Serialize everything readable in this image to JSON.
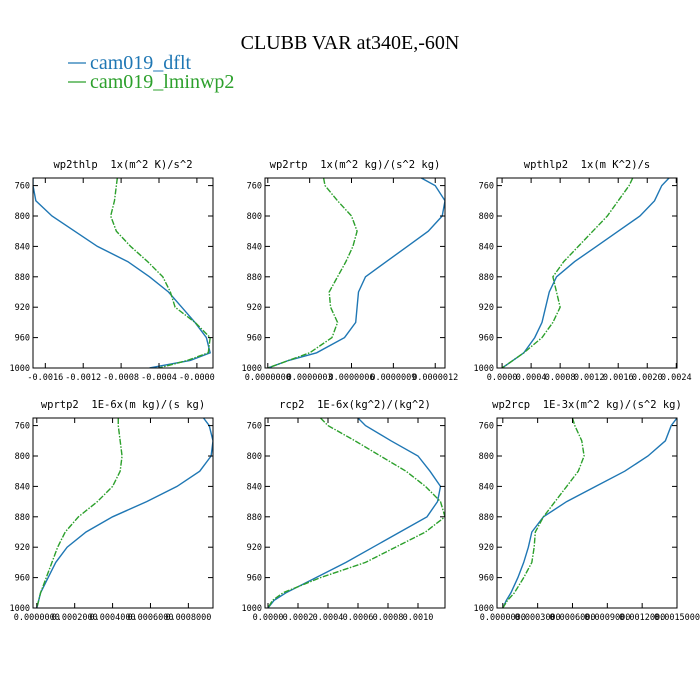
{
  "title": "CLUBB VAR at340E,-60N",
  "legend": [
    {
      "name": "cam019_dflt",
      "color": "#1f77b4"
    },
    {
      "name": "cam019_lminwp2",
      "color": "#2ca02c"
    }
  ],
  "chart_data": [
    {
      "type": "line",
      "title": "wp2thlp  1x(m^2 K)/s^2",
      "y": [
        750,
        760,
        780,
        800,
        820,
        840,
        860,
        880,
        900,
        920,
        940,
        960,
        980,
        990,
        1000
      ],
      "series": [
        {
          "values": [
            -0.00173,
            -0.00173,
            -0.0017,
            -0.00153,
            -0.00129,
            -0.00105,
            -0.00073,
            -0.0005,
            -0.0003,
            -0.00016,
            -2e-05,
            0.0001,
            0.00014,
            -7e-05,
            -0.0005
          ]
        },
        {
          "values": [
            -0.00084,
            -0.00085,
            -0.00087,
            -0.00091,
            -0.00085,
            -0.0007,
            -0.00052,
            -0.00036,
            -0.00028,
            -0.00023,
            -2e-05,
            0.00014,
            0.00012,
            -0.0001,
            -0.0004
          ]
        }
      ],
      "xlim": [
        -0.00173,
        0.00017
      ],
      "xticks": [
        -0.0016,
        -0.0012,
        -0.0008,
        -0.0004,
        {
          "value": 0,
          "label": "-0.0000"
        }
      ],
      "ylim": [
        1000,
        750
      ],
      "yticks": [
        760,
        800,
        840,
        880,
        920,
        960,
        1000
      ]
    },
    {
      "type": "line",
      "title": "wp2rtp  1x(m^2 kg)/(s^2 kg)",
      "y": [
        750,
        760,
        780,
        800,
        820,
        840,
        860,
        880,
        900,
        920,
        940,
        960,
        980,
        990,
        1000
      ],
      "series": [
        {
          "values": [
            1.1e-06,
            1.2e-06,
            1.27e-06,
            1.25e-06,
            1.15e-06,
            1e-06,
            8.5e-07,
            7e-07,
            6.5e-07,
            6.4e-07,
            6.3e-07,
            5.5e-07,
            3.5e-07,
            1.5e-07,
            0
          ]
        },
        {
          "values": [
            4e-07,
            4.1e-07,
            5e-07,
            6e-07,
            6.4e-07,
            6.1e-07,
            5.6e-07,
            5e-07,
            4.4e-07,
            4.5e-07,
            5e-07,
            4.6e-07,
            3e-07,
            1.5e-07,
            0
          ]
        }
      ],
      "xlim": [
        -2e-08,
        1.27e-06
      ],
      "xticks": [
        {
          "value": 0,
          "label": "0.0000000"
        },
        {
          "value": 3e-07,
          "label": "0.0000003"
        },
        {
          "value": 6e-07,
          "label": "0.0000006"
        },
        {
          "value": 9e-07,
          "label": "0.0000009"
        },
        {
          "value": 1.2e-06,
          "label": "0.0000012"
        }
      ],
      "ylim": [
        1000,
        750
      ],
      "yticks": [
        760,
        800,
        840,
        880,
        920,
        960,
        1000
      ]
    },
    {
      "type": "line",
      "title": "wpthlp2  1x(m K^2)/s",
      "y": [
        750,
        760,
        780,
        800,
        820,
        840,
        860,
        880,
        900,
        920,
        940,
        960,
        980,
        990,
        1000
      ],
      "series": [
        {
          "values": [
            0.0023,
            0.0022,
            0.0021,
            0.0019,
            0.0016,
            0.0013,
            0.001,
            0.00075,
            0.00065,
            0.0006,
            0.00055,
            0.00045,
            0.0003,
            0.00015,
            0
          ]
        },
        {
          "values": [
            0.0018,
            0.00175,
            0.0016,
            0.00145,
            0.00125,
            0.00105,
            0.00085,
            0.0007,
            0.00075,
            0.0008,
            0.0007,
            0.00055,
            0.0003,
            0.00015,
            0
          ]
        }
      ],
      "xlim": [
        -7e-05,
        0.00241
      ],
      "xticks": [
        {
          "value": 0,
          "label": "0.0000"
        },
        0.0004,
        0.0008,
        0.0012,
        0.0016,
        {
          "value": 0.002,
          "label": "0.0020"
        },
        0.0024
      ],
      "ylim": [
        1000,
        750
      ],
      "yticks": [
        760,
        800,
        840,
        880,
        920,
        960,
        1000
      ]
    },
    {
      "type": "line",
      "title": "wprtp2  1E-6x(m kg)/(s kg)",
      "y": [
        750,
        760,
        780,
        800,
        820,
        840,
        860,
        880,
        900,
        920,
        940,
        960,
        980,
        990,
        1000
      ],
      "series": [
        {
          "values": [
            0.00088,
            0.00091,
            0.00093,
            0.00092,
            0.00086,
            0.00074,
            0.00058,
            0.0004,
            0.00026,
            0.00016,
            0.0001,
            6e-05,
            2e-05,
            1e-05,
            0
          ]
        },
        {
          "values": [
            0.00043,
            0.00043,
            0.00044,
            0.00045,
            0.00044,
            0.0004,
            0.00032,
            0.00022,
            0.00015,
            0.00011,
            8e-05,
            5e-05,
            2e-05,
            1e-05,
            0
          ]
        }
      ],
      "xlim": [
        -2e-05,
        0.00093
      ],
      "xticks": [
        {
          "value": 0,
          "label": "0.0000000"
        },
        {
          "value": 0.0002,
          "label": "0.0002000"
        },
        {
          "value": 0.0004,
          "label": "0.0004000"
        },
        {
          "value": 0.0006,
          "label": "0.0006000"
        },
        {
          "value": 0.0008,
          "label": "0.0008000"
        }
      ],
      "ylim": [
        1000,
        750
      ],
      "yticks": [
        760,
        800,
        840,
        880,
        920,
        960,
        1000
      ]
    },
    {
      "type": "line",
      "title": "rcp2  1E-6x(kg^2)/(kg^2)",
      "y": [
        750,
        760,
        780,
        800,
        820,
        840,
        860,
        880,
        900,
        920,
        940,
        960,
        980,
        990,
        1000
      ],
      "series": [
        {
          "values": [
            0.0006,
            0.00065,
            0.00082,
            0.001,
            0.00108,
            0.00115,
            0.00113,
            0.00106,
            0.00088,
            0.0007,
            0.00052,
            0.00032,
            0.00012,
            4e-05,
            0
          ]
        },
        {
          "values": [
            0.00035,
            0.0004,
            0.00058,
            0.00075,
            0.00092,
            0.00105,
            0.00115,
            0.00118,
            0.00105,
            0.00085,
            0.00065,
            0.00035,
            0.0001,
            3e-05,
            0
          ]
        }
      ],
      "xlim": [
        -2e-05,
        0.00118
      ],
      "xticks": [
        {
          "value": 0,
          "label": "0.0000"
        },
        0.0002,
        0.0004,
        0.0006,
        0.0008,
        {
          "value": 0.001,
          "label": "0.0010"
        }
      ],
      "ylim": [
        1000,
        750
      ],
      "yticks": [
        760,
        800,
        840,
        880,
        920,
        960,
        1000
      ]
    },
    {
      "type": "line",
      "title": "wp2rcp  1E-3x(m^2 kg)/(s^2 kg)",
      "y": [
        750,
        760,
        780,
        800,
        820,
        840,
        860,
        880,
        900,
        920,
        940,
        960,
        980,
        990,
        1000
      ],
      "series": [
        {
          "values": [
            0.0015,
            0.00145,
            0.0014,
            0.00125,
            0.00105,
            0.0008,
            0.00055,
            0.00035,
            0.00025,
            0.00022,
            0.00018,
            0.00013,
            7e-05,
            3e-05,
            0
          ]
        },
        {
          "values": [
            0.0006,
            0.00062,
            0.00068,
            0.0007,
            0.00065,
            0.00055,
            0.00045,
            0.00035,
            0.00028,
            0.00027,
            0.00025,
            0.00018,
            0.0001,
            4e-05,
            0
          ]
        }
      ],
      "xlim": [
        -5e-05,
        0.0015
      ],
      "xticks": [
        {
          "value": 0,
          "label": "0.0000000"
        },
        {
          "value": 0.0003,
          "label": "0.0003000"
        },
        {
          "value": 0.0006,
          "label": "0.0006000"
        },
        {
          "value": 0.0009,
          "label": "0.0009000"
        },
        {
          "value": 0.0012,
          "label": "0.0012000"
        },
        {
          "value": 0.0015,
          "label": "0.0015000"
        }
      ],
      "ylim": [
        1000,
        750
      ],
      "yticks": [
        760,
        800,
        840,
        880,
        920,
        960,
        1000
      ]
    }
  ]
}
